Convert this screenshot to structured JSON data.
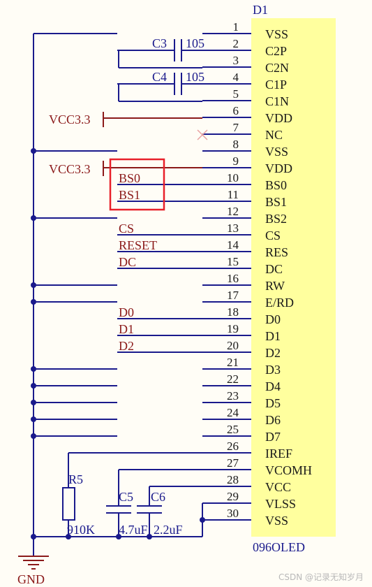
{
  "component": {
    "designator": "D1",
    "part_name": "096OLED"
  },
  "pins": [
    {
      "num": "1",
      "name": "VSS"
    },
    {
      "num": "2",
      "name": "C2P"
    },
    {
      "num": "3",
      "name": "C2N"
    },
    {
      "num": "4",
      "name": "C1P"
    },
    {
      "num": "5",
      "name": "C1N"
    },
    {
      "num": "6",
      "name": "VDD"
    },
    {
      "num": "7",
      "name": "NC"
    },
    {
      "num": "8",
      "name": "VSS"
    },
    {
      "num": "9",
      "name": "VDD"
    },
    {
      "num": "10",
      "name": "BS0"
    },
    {
      "num": "11",
      "name": "BS1"
    },
    {
      "num": "12",
      "name": "BS2"
    },
    {
      "num": "13",
      "name": "CS"
    },
    {
      "num": "14",
      "name": "RES"
    },
    {
      "num": "15",
      "name": "DC"
    },
    {
      "num": "16",
      "name": "RW"
    },
    {
      "num": "17",
      "name": "E/RD"
    },
    {
      "num": "18",
      "name": "D0"
    },
    {
      "num": "19",
      "name": "D1"
    },
    {
      "num": "20",
      "name": "D2"
    },
    {
      "num": "21",
      "name": "D3"
    },
    {
      "num": "22",
      "name": "D4"
    },
    {
      "num": "23",
      "name": "D5"
    },
    {
      "num": "24",
      "name": "D6"
    },
    {
      "num": "25",
      "name": "D7"
    },
    {
      "num": "26",
      "name": "IREF"
    },
    {
      "num": "27",
      "name": "VCOMH"
    },
    {
      "num": "28",
      "name": "VCC"
    },
    {
      "num": "29",
      "name": "VLSS"
    },
    {
      "num": "30",
      "name": "VSS"
    }
  ],
  "net_labels": {
    "bs0": "BS0",
    "bs1": "BS1",
    "cs": "CS",
    "reset": "RESET",
    "dc": "DC",
    "d0": "D0",
    "d1": "D1",
    "d2": "D2"
  },
  "power": {
    "vcc_6": "VCC3.3",
    "vcc_9": "VCC3.3",
    "gnd": "GND"
  },
  "components": {
    "c3": {
      "ref": "C3",
      "value": "105"
    },
    "c4": {
      "ref": "C4",
      "value": "105"
    },
    "c5": {
      "ref": "C5",
      "value": "4.7uF"
    },
    "c6": {
      "ref": "C6",
      "value": "2.2uF"
    },
    "r5": {
      "ref": "R5",
      "value": "910K"
    }
  },
  "watermark": "CSDN @记录无知岁月",
  "colors": {
    "wire": "#1a1a8c",
    "net_label": "#8b1a1a",
    "body": "#ffff9e",
    "highlight": "#e8202a",
    "junction": "#1a1a8c",
    "nc_mark": "#e8a0a0"
  }
}
